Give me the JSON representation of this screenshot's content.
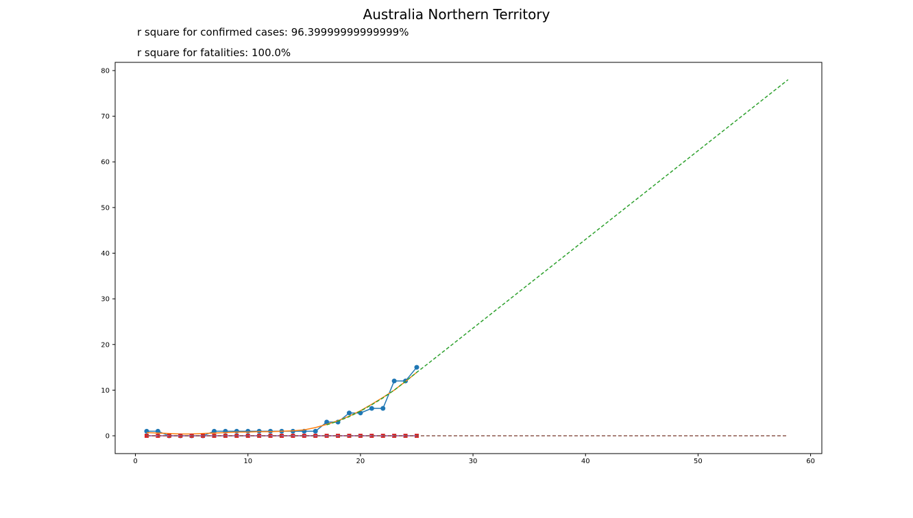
{
  "title": "Australia Northern Territory",
  "notes": {
    "confirmed": "r square for confirmed cases: 96.39999999999999%",
    "fatalities": "r square for fatalities: 100.0%"
  },
  "chart_data": {
    "type": "line",
    "title": "Australia Northern Territory",
    "xlabel": "",
    "ylabel": "",
    "xlim": [
      -1.8,
      61
    ],
    "ylim": [
      -3.9,
      81.8
    ],
    "xticks": [
      0,
      10,
      20,
      30,
      40,
      50,
      60
    ],
    "yticks": [
      0,
      10,
      20,
      30,
      40,
      50,
      60,
      70,
      80
    ],
    "grid": false,
    "legend": "none",
    "series": [
      {
        "style": "solid-circle-markers",
        "color": "#1f77b4",
        "x": [
          1,
          2,
          3,
          4,
          5,
          6,
          7,
          8,
          9,
          10,
          11,
          12,
          13,
          14,
          15,
          16,
          17,
          18,
          19,
          20,
          21,
          22,
          23,
          24,
          25
        ],
        "y": [
          1,
          1,
          0,
          0,
          0,
          0,
          1,
          1,
          1,
          1,
          1,
          1,
          1,
          1,
          1,
          1,
          3,
          3,
          5,
          5,
          6,
          6,
          12,
          12,
          15
        ]
      },
      {
        "style": "solid",
        "color": "#ff7f0e",
        "x": [
          1,
          2,
          3,
          4,
          5,
          6,
          7,
          8,
          9,
          10,
          11,
          12,
          13,
          14,
          15,
          16,
          17,
          18,
          19,
          20,
          21,
          22,
          23,
          24,
          25
        ],
        "y": [
          0.7,
          0.6,
          0.5,
          0.4,
          0.4,
          0.5,
          0.6,
          0.7,
          0.8,
          0.8,
          0.9,
          0.9,
          1.0,
          1.1,
          1.3,
          1.8,
          2.5,
          3.3,
          4.3,
          5.5,
          6.9,
          8.4,
          10.0,
          11.9,
          13.9
        ]
      },
      {
        "style": "dashed",
        "color": "#2ca02c",
        "x": [
          17,
          18,
          19,
          20,
          21,
          22,
          23,
          24,
          25,
          26,
          58
        ],
        "y": [
          2.4,
          3.2,
          4.2,
          5.4,
          6.8,
          8.3,
          10.0,
          11.9,
          13.9,
          15.8,
          78
        ]
      },
      {
        "style": "solid-square-markers",
        "color": "#d62728",
        "x": [
          1,
          2,
          3,
          4,
          5,
          6,
          7,
          8,
          9,
          10,
          11,
          12,
          13,
          14,
          15,
          16,
          17,
          18,
          19,
          20,
          21,
          22,
          23,
          24,
          25
        ],
        "y": [
          0,
          0,
          0,
          0,
          0,
          0,
          0,
          0,
          0,
          0,
          0,
          0,
          0,
          0,
          0,
          0,
          0,
          0,
          0,
          0,
          0,
          0,
          0,
          0,
          0
        ]
      },
      {
        "style": "solid",
        "color": "#9467bd",
        "x": [
          1,
          25
        ],
        "y": [
          0,
          0
        ]
      },
      {
        "style": "dashed",
        "color": "#8c564b",
        "x": [
          1,
          58
        ],
        "y": [
          0,
          0
        ]
      }
    ]
  }
}
